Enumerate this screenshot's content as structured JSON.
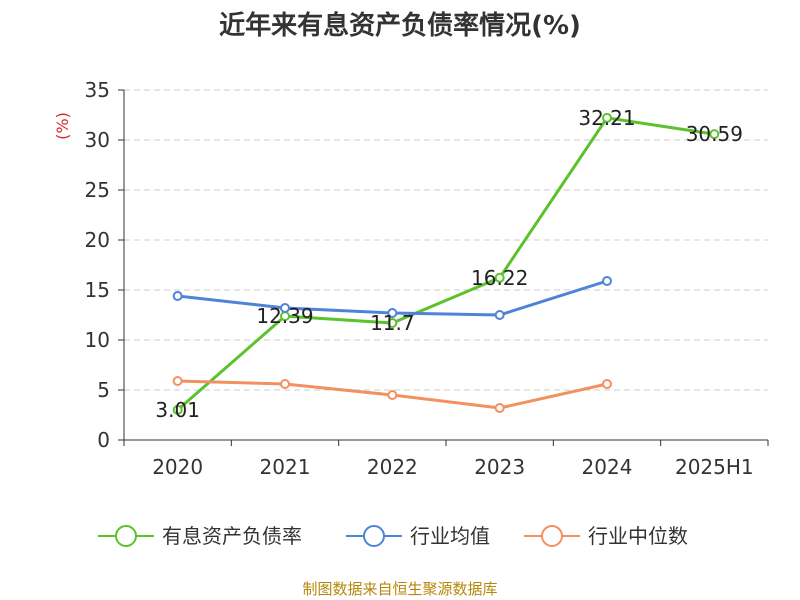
{
  "chart_data": {
    "type": "line",
    "title": "近年来有息资产负债率情况(%)",
    "ylabel": "(%)",
    "categories": [
      "2020",
      "2021",
      "2022",
      "2023",
      "2024",
      "2025H1"
    ],
    "ylim": [
      0,
      35
    ],
    "yticks": [
      0,
      5,
      10,
      15,
      20,
      25,
      30,
      35
    ],
    "grid": true,
    "legend_position": "bottom",
    "series": [
      {
        "name": "有息资产负债率",
        "color": "#5cc22b",
        "values": [
          3.01,
          12.39,
          11.7,
          16.22,
          32.21,
          30.59
        ],
        "labels": [
          "3.01",
          "12.39",
          "11.7",
          "16.22",
          "32.21",
          "30.59"
        ]
      },
      {
        "name": "行业均值",
        "color": "#4f83d8",
        "values": [
          14.4,
          13.2,
          12.7,
          12.5,
          15.9,
          null
        ]
      },
      {
        "name": "行业中位数",
        "color": "#f39060",
        "values": [
          5.9,
          5.6,
          4.5,
          3.2,
          5.6,
          null
        ]
      }
    ]
  },
  "footer": "制图数据来自恒生聚源数据库"
}
